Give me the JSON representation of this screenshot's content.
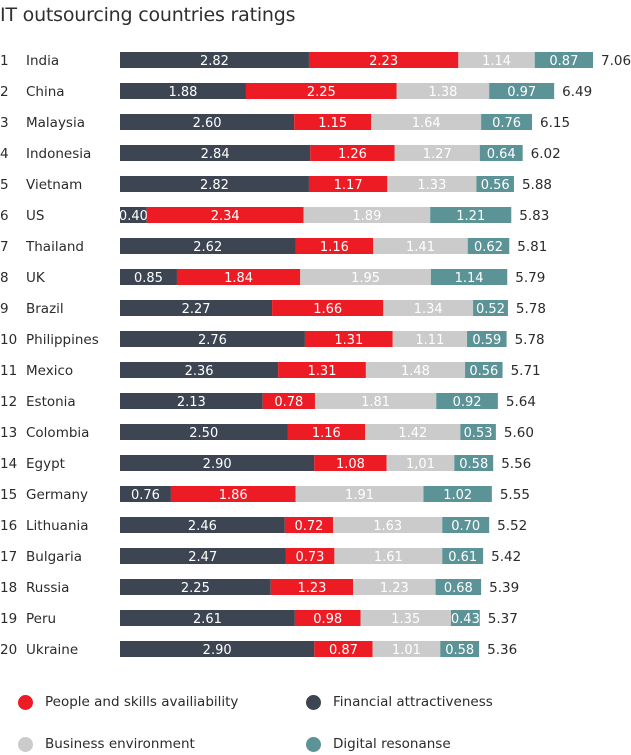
{
  "chart_data": {
    "type": "bar",
    "stacked": true,
    "orientation": "horizontal",
    "title": "IT outsourcing countries ratings",
    "ranks": [
      "1",
      "2",
      "3",
      "4",
      "5",
      "6",
      "7",
      "8",
      "9",
      "10",
      "11",
      "12",
      "13",
      "14",
      "15",
      "16",
      "17",
      "18",
      "19",
      "20"
    ],
    "categories": [
      "India",
      "China",
      "Malaysia",
      "Indonesia",
      "Vietnam",
      "US",
      "Thailand",
      "UK",
      "Brazil",
      "Philippines",
      "Mexico",
      "Estonia",
      "Colombia",
      "Egypt",
      "Germany",
      "Lithuania",
      "Bulgaria",
      "Russia",
      "Peru",
      "Ukraine"
    ],
    "series": [
      {
        "name": "Financial attractiveness",
        "color": "#3d4552",
        "values": [
          2.82,
          1.88,
          2.6,
          2.84,
          2.82,
          0.4,
          2.62,
          0.85,
          2.27,
          2.76,
          2.36,
          2.13,
          2.5,
          2.9,
          0.76,
          2.46,
          2.47,
          2.25,
          2.61,
          2.9
        ],
        "labels": [
          "2.82",
          "1.88",
          "2.60",
          "2.84",
          "2.82",
          "0.40",
          "2.62",
          "0.85",
          "2.27",
          "2.76",
          "2.36",
          "2.13",
          "2.50",
          "2.90",
          "0.76",
          "2.46",
          "2.47",
          "2.25",
          "2.61",
          "2.90"
        ]
      },
      {
        "name": "People and skills availiability",
        "color": "#ed1c24",
        "values": [
          2.23,
          2.25,
          1.15,
          1.26,
          1.17,
          2.34,
          1.16,
          1.84,
          1.66,
          1.31,
          1.31,
          0.78,
          1.16,
          1.08,
          1.86,
          0.72,
          0.73,
          1.23,
          0.98,
          0.87
        ],
        "labels": [
          "2.23",
          "2.25",
          "1.15",
          "1.26",
          "1.17",
          "2.34",
          "1.16",
          "1.84",
          "1.66",
          "1.31",
          "1.31",
          "0.78",
          "1.16",
          "1.08",
          "1.86",
          "0.72",
          "0.73",
          "1.23",
          "0.98",
          "0.87"
        ]
      },
      {
        "name": "Business environment",
        "color": "#cbcbcb",
        "values": [
          1.14,
          1.38,
          1.64,
          1.27,
          1.33,
          1.89,
          1.41,
          1.95,
          1.34,
          1.11,
          1.48,
          1.81,
          1.42,
          1.01,
          1.91,
          1.63,
          1.61,
          1.23,
          1.35,
          1.01
        ],
        "labels": [
          "1.14",
          "1.38",
          "1.64",
          "1.27",
          "1.33",
          "1.89",
          "1.41",
          "1.95",
          "1.34",
          "1.11",
          "1.48",
          "1.81",
          "1.42",
          "1,01",
          "1.91",
          "1.63",
          "1.61",
          "1.23",
          "1.35",
          "1.01"
        ]
      },
      {
        "name": "Digital resonanse",
        "color": "#5b9397",
        "values": [
          0.87,
          0.97,
          0.76,
          0.64,
          0.56,
          1.21,
          0.62,
          1.14,
          0.52,
          0.59,
          0.56,
          0.92,
          0.53,
          0.58,
          1.02,
          0.7,
          0.61,
          0.68,
          0.43,
          0.58
        ],
        "labels": [
          "0.87",
          "0.97",
          "0.76",
          "0.64",
          "0.56",
          "1.21",
          "0.62",
          "1.14",
          "0.52",
          "0.59",
          "0.56",
          "0.92",
          "0.53",
          "0.58",
          "1.02",
          "0.70",
          "0.61",
          "0.68",
          "0.43",
          "0.58"
        ]
      }
    ],
    "totals": [
      "7.06",
      "6.49",
      "6.15",
      "6.02",
      "5.88",
      "5.83",
      "5.81",
      "5.79",
      "5.78",
      "5.78",
      "5.71",
      "5.64",
      "5.60",
      "5.56",
      "5.55",
      "5.52",
      "5.42",
      "5.39",
      "5.37",
      "5.36"
    ],
    "legend": {
      "position": "bottom",
      "items": [
        {
          "label": "People and skills availiability",
          "color": "#ed1c24"
        },
        {
          "label": "Financial attractiveness",
          "color": "#3d4552"
        },
        {
          "label": "Business environment",
          "color": "#cbcbcb"
        },
        {
          "label": "Digital resonanse",
          "color": "#5b9397"
        }
      ]
    }
  }
}
